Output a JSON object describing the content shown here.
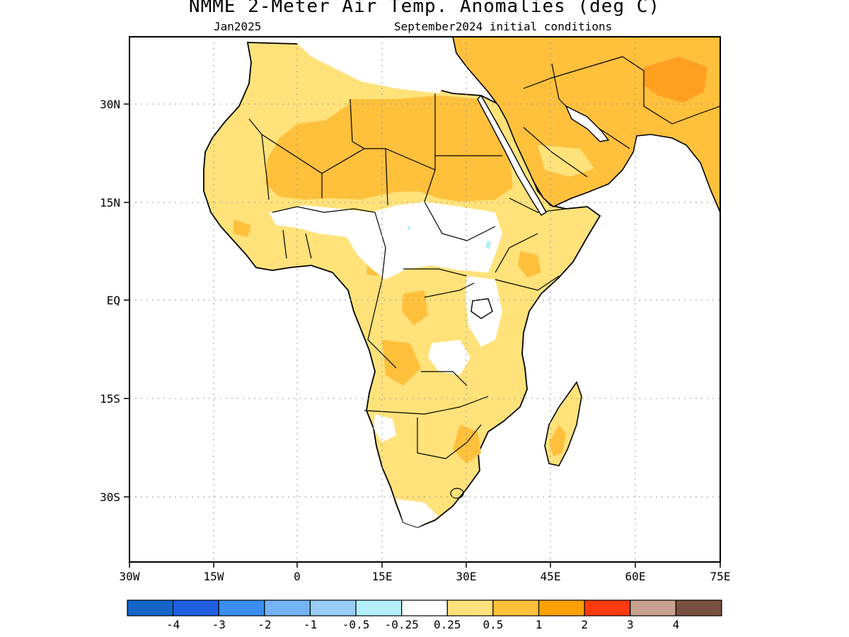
{
  "title": "NMME 2-Meter Air Temp. Anomalies (deg C)",
  "subtitle_left": "Jan2025",
  "subtitle_right": "September2024 initial conditions",
  "lat_labels": [
    "30N",
    "15N",
    "EQ",
    "15S",
    "30S"
  ],
  "lon_labels": [
    "30W",
    "15W",
    "0",
    "15E",
    "30E",
    "45E",
    "60E",
    "75E"
  ],
  "colorbar": {
    "colors": [
      "#1565c8",
      "#1f5fe0",
      "#3a8ef0",
      "#74b4f6",
      "#98cdf8",
      "#b4f0fa",
      "#ffffff",
      "#ffe27a",
      "#ffc03c",
      "#ffa000",
      "#ff3a10",
      "#c8a090",
      "#7a5040"
    ],
    "labels": [
      "-4",
      "-3",
      "-2",
      "-1",
      "-0.5",
      "-0.25",
      "0.25",
      "0.5",
      "1",
      "2",
      "3",
      "4"
    ]
  },
  "map_colors": {
    "weak_warm": "#ffe27a",
    "moderate_warm": "#ffc03c",
    "strong_warm": "#ffa020",
    "weak_cool": "#b4f0fa"
  }
}
